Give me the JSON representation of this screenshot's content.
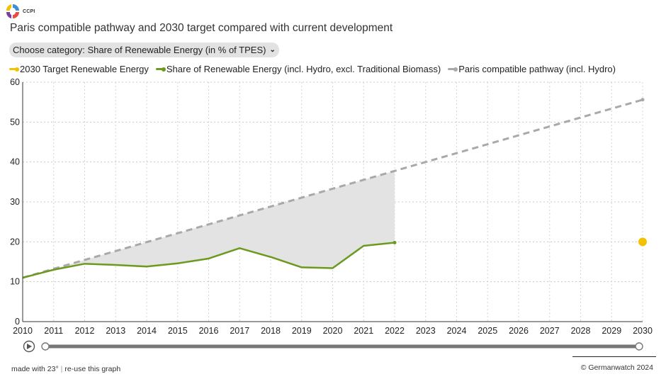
{
  "logo": {
    "text": "CCPI",
    "icon": "ccpi-logo-icon"
  },
  "title": "Paris compatible pathway and 2030 target compared with current development",
  "dropdown": {
    "selected": "Choose category: Share of Renewable Energy (in % of TPES)",
    "icon": "chevron-down-icon"
  },
  "legend": [
    {
      "label": "2030 Target Renewable Energy",
      "color": "#f2c200"
    },
    {
      "label": "Share of Renewable Energy (incl. Hydro, excl. Traditional Biomass)",
      "color": "#6b9a1e"
    },
    {
      "label": "Paris compatible pathway (incl. Hydro)",
      "color": "#a9a9a9"
    }
  ],
  "slider": {
    "play_icon": "play-icon",
    "range": [
      0,
      1
    ]
  },
  "footer": {
    "made_with": "made with 23°",
    "reuse": "re-use this graph",
    "copyright": "© Germanwatch 2024"
  },
  "chart_data": {
    "type": "line",
    "xlim": [
      2010,
      2030
    ],
    "ylim": [
      0,
      60
    ],
    "x_ticks": [
      "2010",
      "2011",
      "2012",
      "2013",
      "2014",
      "2015",
      "2016",
      "2017",
      "2018",
      "2019",
      "2020",
      "2021",
      "2022",
      "2023",
      "2024",
      "2025",
      "2026",
      "2027",
      "2028",
      "2029",
      "2030"
    ],
    "y_ticks": [
      "0",
      "10",
      "20",
      "30",
      "40",
      "50",
      "60"
    ],
    "grid": true,
    "legend_position": "top-left",
    "series": [
      {
        "name": "Share of Renewable Energy (incl. Hydro, excl. Traditional Biomass)",
        "color": "#6b9a1e",
        "style": "solid",
        "x": [
          2010,
          2011,
          2012,
          2013,
          2014,
          2015,
          2016,
          2017,
          2018,
          2019,
          2020,
          2021,
          2022
        ],
        "y": [
          11.0,
          13.0,
          14.5,
          14.2,
          13.8,
          14.6,
          15.8,
          18.4,
          16.2,
          13.6,
          13.4,
          19.0,
          19.8
        ]
      },
      {
        "name": "Paris compatible pathway (incl. Hydro)",
        "color": "#a9a9a9",
        "style": "dashed",
        "x": [
          2010,
          2030
        ],
        "y": [
          11.0,
          55.6
        ]
      },
      {
        "name": "2030 Target Renewable Energy",
        "color": "#f2c200",
        "style": "point",
        "x": [
          2030
        ],
        "y": [
          20.0
        ]
      }
    ],
    "gap_area": {
      "from_series": "Share of Renewable Energy (incl. Hydro, excl. Traditional Biomass)",
      "to_series": "Paris compatible pathway (incl. Hydro)",
      "color": "#e3e3e3"
    }
  }
}
